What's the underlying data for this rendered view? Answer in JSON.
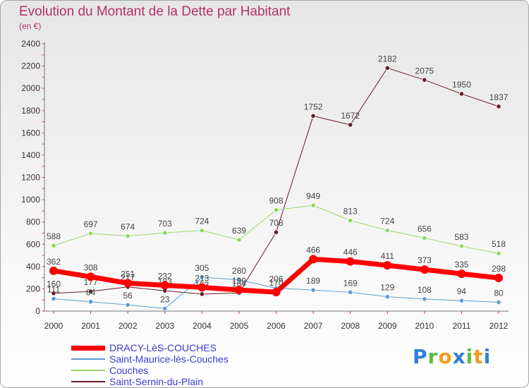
{
  "title": "Evolution du Montant de la Dette par Habitant",
  "subtitle": "(en €)",
  "logo": {
    "text": "Proxiti",
    "letters": [
      {
        "ch": "P",
        "color": "#2e7fd6"
      },
      {
        "ch": "r",
        "color": "#58b947"
      },
      {
        "ch": "o",
        "color": "#f39c1f"
      },
      {
        "ch": "x",
        "color": "#2e7fd6"
      },
      {
        "ch": "i",
        "color": "#58b947"
      },
      {
        "ch": "t",
        "color": "#f39c1f"
      },
      {
        "ch": "i",
        "color": "#2e7fd6"
      }
    ]
  },
  "chart_data": {
    "type": "line",
    "x": [
      "2000",
      "2001",
      "2002",
      "2003",
      "2004",
      "2005",
      "2006",
      "2007",
      "2008",
      "2009",
      "2010",
      "2011",
      "2012"
    ],
    "ylim": [
      0,
      2400
    ],
    "yticks": [
      0,
      200,
      400,
      600,
      800,
      1000,
      1200,
      1400,
      1600,
      1800,
      2000,
      2200,
      2400
    ],
    "grid": false,
    "legend_position": "bottom-left",
    "series": [
      {
        "name": "Saint-Sernin-du-Plain",
        "color": "#6b1a24",
        "marker": "#6b1a24",
        "width": 1,
        "values": [
          160,
          177,
          217,
          183,
          153,
          164,
          708,
          1752,
          1672,
          2182,
          2075,
          1950,
          1837
        ],
        "labels": [
          "160",
          "177",
          "217",
          "183",
          "153",
          "164",
          "708",
          "1752",
          "1672",
          "2182",
          "2075",
          "1950",
          "1837"
        ]
      },
      {
        "name": "Couches",
        "color": "#9bd66b",
        "marker": "#8fd65a",
        "width": 1,
        "values": [
          588,
          697,
          674,
          703,
          724,
          639,
          908,
          949,
          813,
          724,
          656,
          583,
          518
        ],
        "labels": [
          "588",
          "697",
          "674",
          "703",
          "724",
          "639",
          "908",
          "949",
          "813",
          "724",
          "656",
          "583",
          "518"
        ]
      },
      {
        "name": "Saint-Maurice-lès-Couches",
        "color": "#5a9bd4",
        "marker": "#5a9bd4",
        "width": 1,
        "values": [
          111,
          84,
          56,
          23,
          305,
          280,
          206,
          189,
          169,
          129,
          108,
          94,
          80
        ],
        "labels": [
          "111",
          "84",
          "56",
          "23",
          "305",
          "280",
          "206",
          "189",
          "169",
          "129",
          "108",
          "94",
          "80"
        ]
      },
      {
        "name": "DRACY-LèS-COUCHES",
        "color": "#ff0000",
        "marker": "#ff0000",
        "width": 7,
        "values": [
          362,
          308,
          251,
          232,
          213,
          190,
          170,
          466,
          446,
          411,
          373,
          335,
          298
        ],
        "labels": [
          "362",
          "308",
          "251",
          "232",
          "213",
          "190",
          "170",
          "466",
          "446",
          "411",
          "373",
          "335",
          "298"
        ]
      }
    ]
  },
  "legend": [
    {
      "label": "DRACY-LèS-COUCHES",
      "color": "#ff0000",
      "thickness": 7
    },
    {
      "label": "Saint-Maurice-lès-Couches",
      "color": "#5a9bd4",
      "thickness": 2
    },
    {
      "label": "Couches",
      "color": "#9bd66b",
      "thickness": 2
    },
    {
      "label": "Saint-Sernin-du-Plain",
      "color": "#6b1a24",
      "thickness": 2
    }
  ]
}
